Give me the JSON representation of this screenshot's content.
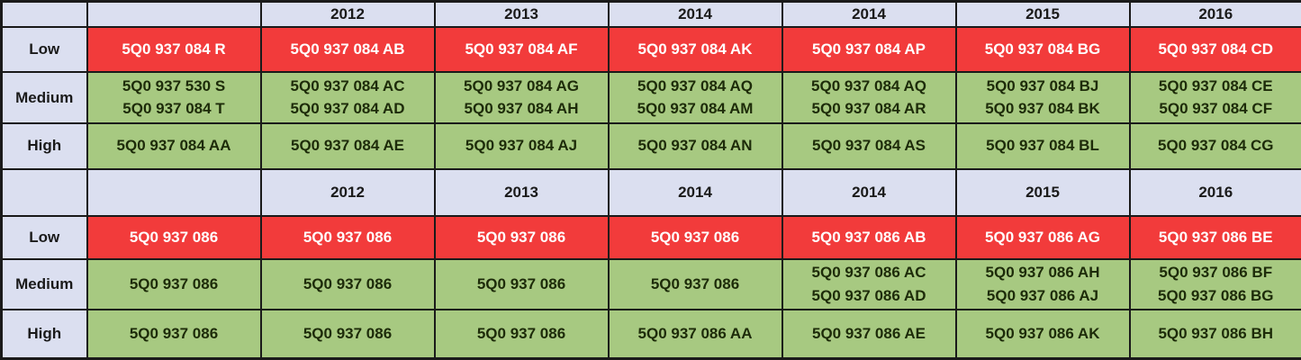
{
  "palette": {
    "red": "#f23b3b",
    "green": "#a7c981",
    "header_bg": "#dbdff0",
    "border": "#1a1a1a",
    "red_text": "#ffffff",
    "dark_text": "#1d2b09",
    "header_text": "#1a1a1a"
  },
  "tables": [
    {
      "name": "part-number-matrix-084",
      "years": [
        "",
        "2012",
        "2013",
        "2014",
        "2014",
        "2015",
        "2016"
      ],
      "rows": [
        {
          "label": "Low",
          "style": "red",
          "cells": [
            {
              "lines": [
                "5Q0 937 084 R"
              ]
            },
            {
              "lines": [
                "5Q0 937 084 AB"
              ]
            },
            {
              "lines": [
                "5Q0 937 084 AF"
              ]
            },
            {
              "lines": [
                "5Q0 937 084 AK"
              ]
            },
            {
              "lines": [
                "5Q0 937 084 AP"
              ]
            },
            {
              "lines": [
                "5Q0 937 084 BG"
              ]
            },
            {
              "lines": [
                "5Q0 937 084 CD"
              ]
            }
          ]
        },
        {
          "label": "Medium",
          "style": "green",
          "cells": [
            {
              "lines": [
                "5Q0 937 530 S",
                "5Q0 937 084 T"
              ]
            },
            {
              "lines": [
                "5Q0 937 084 AC",
                "5Q0 937 084 AD"
              ]
            },
            {
              "lines": [
                "5Q0 937 084 AG",
                "5Q0 937 084 AH"
              ]
            },
            {
              "lines": [
                "5Q0 937 084 AQ",
                "5Q0 937 084 AM"
              ]
            },
            {
              "lines": [
                "5Q0 937 084 AQ",
                "5Q0 937 084 AR"
              ]
            },
            {
              "lines": [
                "5Q0 937 084 BJ",
                "5Q0 937 084 BK"
              ],
              "align": "left"
            },
            {
              "lines": [
                "5Q0 937 084 CE",
                "5Q0 937 084 CF"
              ]
            }
          ]
        },
        {
          "label": "High",
          "style": "green",
          "cells": [
            {
              "lines": [
                "5Q0 937 084 AA"
              ]
            },
            {
              "lines": [
                "5Q0 937 084 AE"
              ]
            },
            {
              "lines": [
                "5Q0 937 084 AJ"
              ]
            },
            {
              "lines": [
                "5Q0 937 084 AN"
              ]
            },
            {
              "lines": [
                "5Q0 937 084 AS"
              ]
            },
            {
              "lines": [
                "5Q0 937 084 BL"
              ],
              "align": "left"
            },
            {
              "lines": [
                "5Q0 937 084 CG"
              ]
            }
          ]
        }
      ]
    },
    {
      "name": "part-number-matrix-086",
      "years": [
        "",
        "2012",
        "2013",
        "2014",
        "2014",
        "2015",
        "2016"
      ],
      "rows": [
        {
          "label": "Low",
          "style": "red",
          "cells": [
            {
              "lines": [
                "5Q0 937 086"
              ]
            },
            {
              "lines": [
                "5Q0 937 086"
              ]
            },
            {
              "lines": [
                "5Q0 937 086"
              ]
            },
            {
              "lines": [
                "5Q0 937 086"
              ]
            },
            {
              "lines": [
                "5Q0 937 086 AB"
              ]
            },
            {
              "lines": [
                "5Q0 937 086 AG"
              ]
            },
            {
              "lines": [
                "5Q0 937 086 BE"
              ]
            }
          ]
        },
        {
          "label": "Medium",
          "style": "green",
          "cells": [
            {
              "lines": [
                "5Q0 937 086"
              ]
            },
            {
              "lines": [
                "5Q0 937 086"
              ]
            },
            {
              "lines": [
                "5Q0 937 086"
              ]
            },
            {
              "lines": [
                "5Q0 937 086"
              ]
            },
            {
              "lines": [
                "5Q0 937 086 AC",
                "5Q0 937 086 AD"
              ]
            },
            {
              "lines": [
                "5Q0 937 086 AH",
                "5Q0 937 086 AJ"
              ]
            },
            {
              "lines": [
                "5Q0 937 086 BF",
                "5Q0 937 086 BG"
              ]
            }
          ]
        },
        {
          "label": "High",
          "style": "green",
          "cells": [
            {
              "lines": [
                "5Q0 937 086"
              ]
            },
            {
              "lines": [
                "5Q0 937 086"
              ]
            },
            {
              "lines": [
                "5Q0 937 086"
              ]
            },
            {
              "lines": [
                "5Q0 937 086 AA"
              ]
            },
            {
              "lines": [
                "5Q0 937 086 AE"
              ]
            },
            {
              "lines": [
                "5Q0 937 086 AK"
              ]
            },
            {
              "lines": [
                "5Q0 937 086 BH"
              ]
            }
          ]
        }
      ]
    }
  ]
}
